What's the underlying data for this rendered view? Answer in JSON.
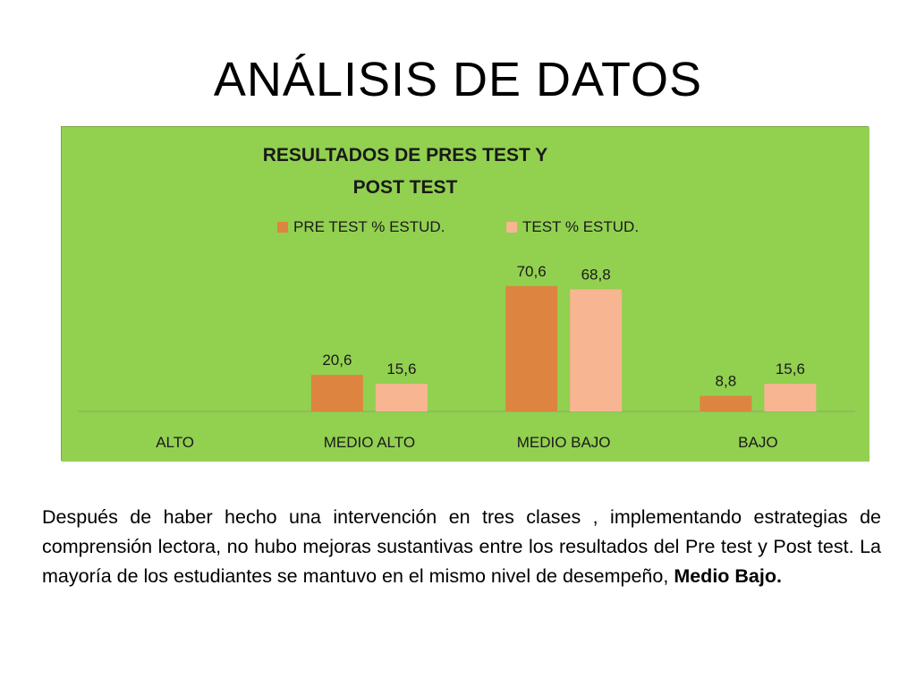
{
  "slide": {
    "title": "ANÁLISIS DE DATOS"
  },
  "paragraph": {
    "text_main": "Después de haber hecho una intervención en  tres clases ,  implementando estrategias de comprensión lectora, no hubo mejoras sustantivas entre los resultados del Pre test y Post test.  La mayoría de los estudiantes se mantuvo en el mismo nivel de desempeño, ",
    "text_bold": "Medio Bajo."
  },
  "colors": {
    "plot_background": "#92d050",
    "series_1": "#dd8440",
    "series_2": "#f7b592",
    "axis": "#8aa870",
    "text": "#1a1a1a"
  },
  "chart_data": {
    "type": "bar",
    "title_lines": [
      "RESULTADOS DE PRES TEST Y",
      "POST TEST"
    ],
    "legend_position": "top",
    "categories": [
      "ALTO",
      "MEDIO ALTO",
      "MEDIO BAJO",
      "BAJO"
    ],
    "series": [
      {
        "name": "PRE TEST % ESTUD.",
        "values": [
          null,
          20.6,
          70.6,
          8.8
        ],
        "labels": [
          "",
          "20,6",
          "70,6",
          "8,8"
        ]
      },
      {
        "name": "TEST % ESTUD.",
        "values": [
          null,
          15.6,
          68.8,
          15.6
        ],
        "labels": [
          "",
          "15,6",
          "68,8",
          "15,6"
        ]
      }
    ],
    "ylim": [
      0,
      75
    ],
    "grid": false
  }
}
